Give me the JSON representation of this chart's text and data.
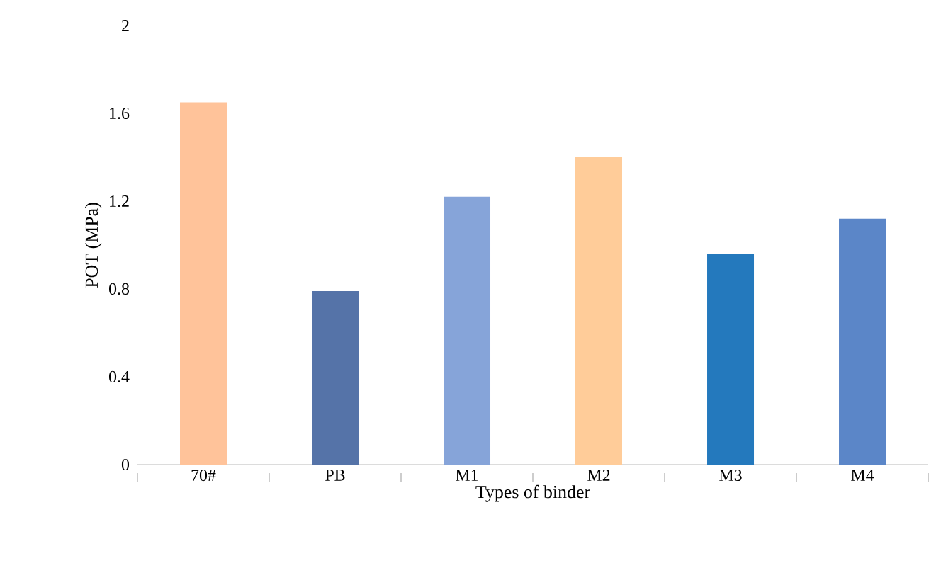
{
  "chart_data": {
    "type": "bar",
    "xlabel": "Types of binder",
    "ylabel": "POT (MPa)",
    "categories": [
      "70#",
      "PB",
      "M1",
      "M2",
      "M3",
      "M4"
    ],
    "values": [
      1.65,
      0.79,
      1.22,
      1.4,
      0.96,
      1.12
    ],
    "colors": [
      "#ffc39a",
      "#5573a8",
      "#86a4d9",
      "#ffcc99",
      "#2479bd",
      "#5b86c8"
    ],
    "ylim": [
      0,
      2
    ],
    "yticks": [
      0,
      0.4,
      0.8,
      1.2,
      1.6,
      2
    ]
  }
}
